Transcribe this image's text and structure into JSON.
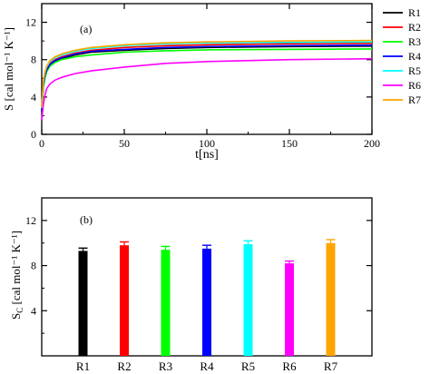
{
  "chart_data": [
    {
      "type": "line",
      "panel_label": "(a)",
      "xlabel": "t[ns]",
      "ylabel": "S [cal mol⁻¹ K⁻¹]",
      "xlim": [
        0,
        200
      ],
      "ylim": [
        0,
        14
      ],
      "xticks": [
        0,
        50,
        100,
        150,
        200
      ],
      "yticks": [
        0,
        4,
        8,
        12
      ],
      "legend": "right",
      "series": [
        {
          "name": "R1",
          "color": "#000000",
          "x": [
            0,
            1,
            2,
            3,
            5,
            8,
            12,
            20,
            30,
            50,
            75,
            100,
            150,
            200
          ],
          "y": [
            2.5,
            5.2,
            6.2,
            6.8,
            7.4,
            7.8,
            8.1,
            8.5,
            8.8,
            9.0,
            9.2,
            9.3,
            9.4,
            9.45
          ]
        },
        {
          "name": "R2",
          "color": "#ff0000",
          "x": [
            0,
            1,
            2,
            3,
            5,
            8,
            12,
            20,
            30,
            50,
            75,
            100,
            150,
            200
          ],
          "y": [
            2.7,
            5.5,
            6.4,
            7.0,
            7.6,
            8.0,
            8.3,
            8.7,
            9.0,
            9.3,
            9.5,
            9.6,
            9.7,
            9.75
          ]
        },
        {
          "name": "R3",
          "color": "#00ff00",
          "x": [
            0,
            1,
            2,
            3,
            5,
            8,
            12,
            20,
            30,
            50,
            75,
            100,
            150,
            200
          ],
          "y": [
            2.6,
            5.0,
            6.0,
            6.7,
            7.3,
            7.7,
            8.0,
            8.3,
            8.5,
            8.8,
            8.95,
            9.05,
            9.1,
            9.15
          ]
        },
        {
          "name": "R4",
          "color": "#0000ff",
          "x": [
            0,
            1,
            2,
            3,
            5,
            8,
            12,
            20,
            30,
            50,
            75,
            100,
            150,
            200
          ],
          "y": [
            2.5,
            5.3,
            6.3,
            6.9,
            7.5,
            7.9,
            8.2,
            8.6,
            8.9,
            9.1,
            9.3,
            9.4,
            9.5,
            9.55
          ]
        },
        {
          "name": "R5",
          "color": "#00ffff",
          "x": [
            0,
            1,
            2,
            3,
            5,
            8,
            12,
            20,
            30,
            50,
            75,
            100,
            150,
            200
          ],
          "y": [
            2.8,
            5.6,
            6.6,
            7.2,
            7.8,
            8.2,
            8.5,
            8.9,
            9.2,
            9.5,
            9.7,
            9.8,
            9.85,
            9.9
          ]
        },
        {
          "name": "R6",
          "color": "#ff00ff",
          "x": [
            0,
            1,
            2,
            3,
            5,
            8,
            12,
            20,
            30,
            50,
            75,
            100,
            150,
            200
          ],
          "y": [
            1.5,
            3.2,
            4.2,
            4.9,
            5.4,
            5.8,
            6.1,
            6.5,
            6.8,
            7.2,
            7.6,
            7.8,
            8.0,
            8.1
          ]
        },
        {
          "name": "R7",
          "color": "#ffa500",
          "x": [
            0,
            1,
            2,
            3,
            5,
            8,
            12,
            20,
            30,
            50,
            75,
            100,
            150,
            200
          ],
          "y": [
            2.9,
            5.7,
            6.7,
            7.3,
            7.9,
            8.3,
            8.6,
            9.0,
            9.3,
            9.6,
            9.8,
            9.9,
            10.0,
            10.05
          ]
        }
      ]
    },
    {
      "type": "bar",
      "panel_label": "(b)",
      "xlabel": "",
      "ylabel": "S_C [cal mol⁻¹ K⁻¹]",
      "ylabel_main": "S",
      "ylabel_sub": "C",
      "ylabel_rest": " [cal mol⁻¹ K⁻¹]",
      "ylim": [
        0,
        14
      ],
      "yticks": [
        4,
        8,
        12
      ],
      "categories": [
        "R1",
        "R2",
        "R3",
        "R4",
        "R5",
        "R6",
        "R7"
      ],
      "values": [
        9.3,
        9.8,
        9.4,
        9.5,
        9.9,
        8.2,
        10.0
      ],
      "errors": [
        0.25,
        0.3,
        0.3,
        0.3,
        0.3,
        0.2,
        0.3
      ],
      "colors": [
        "#000000",
        "#ff0000",
        "#00ff00",
        "#0000ff",
        "#00ffff",
        "#ff00ff",
        "#ffa500"
      ]
    }
  ]
}
